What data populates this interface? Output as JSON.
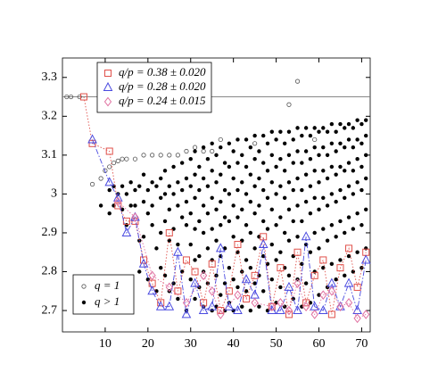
{
  "chart_data": {
    "type": "scatter",
    "xlim": [
      0,
      72
    ],
    "ylim": [
      2.645,
      3.35
    ],
    "xticks": [
      10,
      20,
      30,
      40,
      50,
      60,
      70
    ],
    "yticks": [
      2.7,
      2.8,
      2.9,
      3.0,
      3.1,
      3.2,
      3.3
    ],
    "hline": 3.25,
    "series": [
      {
        "name": "q/p = 0.38 ± 0.020",
        "color": "#e0504a",
        "marker": "square",
        "linestyle": "dotted",
        "x": [
          5,
          7,
          11,
          13,
          15,
          17,
          19,
          21,
          23,
          25,
          27,
          29,
          31,
          33,
          35,
          37,
          39,
          41,
          43,
          45,
          47,
          49,
          51,
          53,
          55,
          57,
          59,
          61,
          63,
          65,
          67,
          69,
          71
        ],
        "values": [
          3.25,
          3.13,
          3.11,
          2.97,
          2.93,
          2.93,
          2.83,
          2.77,
          2.72,
          2.9,
          2.75,
          2.83,
          2.8,
          2.72,
          2.82,
          2.7,
          2.75,
          2.87,
          2.73,
          2.79,
          2.89,
          2.71,
          2.81,
          2.69,
          2.85,
          2.72,
          2.79,
          2.83,
          2.69,
          2.81,
          2.86,
          2.76,
          2.85
        ]
      },
      {
        "name": "q/p = 0.28 ± 0.020",
        "color": "#4a4ae0",
        "marker": "triangle",
        "linestyle": "dashdot",
        "x": [
          7,
          11,
          13,
          15,
          17,
          19,
          21,
          23,
          25,
          27,
          29,
          31,
          33,
          35,
          37,
          39,
          41,
          43,
          45,
          47,
          49,
          51,
          53,
          55,
          57,
          59,
          61,
          63,
          65,
          67,
          69,
          71
        ],
        "values": [
          3.14,
          3.03,
          2.99,
          2.9,
          2.94,
          2.82,
          2.75,
          2.71,
          2.71,
          2.85,
          2.69,
          2.77,
          2.7,
          2.71,
          2.86,
          2.71,
          2.7,
          2.78,
          2.74,
          2.87,
          2.7,
          2.7,
          2.76,
          2.7,
          2.89,
          2.71,
          2.7,
          2.77,
          2.71,
          2.77,
          2.7,
          2.83
        ]
      },
      {
        "name": "q/p = 0.24 ± 0.015",
        "color": "#e070a0",
        "marker": "diamond",
        "linestyle": "dotted",
        "x": [
          13,
          17,
          21,
          25,
          29,
          33,
          35,
          37,
          41,
          45,
          49,
          51,
          53,
          55,
          57,
          59,
          61,
          63,
          65,
          67,
          69,
          71
        ],
        "values": [
          2.98,
          2.94,
          2.79,
          2.76,
          2.72,
          2.79,
          2.75,
          2.69,
          2.74,
          2.72,
          2.71,
          2.72,
          2.7,
          2.77,
          2.71,
          2.69,
          2.74,
          2.75,
          2.71,
          2.72,
          2.68,
          2.69
        ]
      },
      {
        "name": "q = 1",
        "color": "#555555",
        "marker": "open-circle",
        "x": [
          1,
          2,
          4,
          7,
          9,
          10,
          11,
          12,
          13,
          14,
          15,
          17,
          19,
          21,
          23,
          25,
          27,
          29,
          31,
          33,
          35,
          37,
          45,
          53,
          55,
          59
        ],
        "values": [
          3.25,
          3.25,
          3.25,
          3.025,
          3.04,
          3.06,
          3.07,
          3.08,
          3.085,
          3.09,
          3.09,
          3.09,
          3.1,
          3.1,
          3.1,
          3.1,
          3.1,
          3.11,
          3.12,
          3.11,
          3.11,
          3.14,
          3.13,
          3.23,
          3.29,
          3.14
        ]
      },
      {
        "name": "q > 1",
        "color": "#000000",
        "marker": "dot",
        "x": [
          9,
          11,
          11,
          12,
          12,
          13,
          14,
          14,
          15,
          15,
          16,
          16,
          17,
          17,
          18,
          18,
          18,
          19,
          19,
          19,
          20,
          20,
          20,
          21,
          21,
          21,
          22,
          22,
          22,
          23,
          23,
          23,
          23,
          24,
          24,
          24,
          24,
          25,
          25,
          25,
          25,
          26,
          26,
          26,
          26,
          27,
          27,
          27,
          27,
          28,
          28,
          28,
          28,
          29,
          29,
          29,
          29,
          30,
          30,
          30,
          30,
          30,
          31,
          31,
          31,
          31,
          31,
          31,
          32,
          32,
          32,
          32,
          32,
          33,
          33,
          33,
          33,
          33,
          33,
          34,
          34,
          34,
          34,
          34,
          35,
          35,
          35,
          35,
          35,
          35,
          36,
          36,
          36,
          36,
          36,
          36,
          37,
          37,
          37,
          37,
          37,
          37,
          38,
          38,
          38,
          38,
          38,
          38,
          39,
          39,
          39,
          39,
          39,
          39,
          40,
          40,
          40,
          40,
          40,
          40,
          41,
          41,
          41,
          41,
          41,
          41,
          42,
          42,
          42,
          42,
          42,
          42,
          43,
          43,
          43,
          43,
          43,
          43,
          44,
          44,
          44,
          44,
          44,
          44,
          45,
          45,
          45,
          45,
          45,
          45,
          46,
          46,
          46,
          46,
          46,
          46,
          47,
          47,
          47,
          47,
          47,
          47,
          48,
          48,
          48,
          48,
          48,
          48,
          49,
          49,
          49,
          49,
          49,
          49,
          50,
          50,
          50,
          50,
          50,
          50,
          51,
          51,
          51,
          51,
          51,
          51,
          52,
          52,
          52,
          52,
          52,
          52,
          53,
          53,
          53,
          53,
          53,
          53,
          54,
          54,
          54,
          54,
          54,
          54,
          55,
          55,
          55,
          55,
          55,
          55,
          56,
          56,
          56,
          56,
          56,
          56,
          57,
          57,
          57,
          57,
          57,
          57,
          58,
          58,
          58,
          58,
          58,
          58,
          59,
          59,
          59,
          59,
          59,
          59,
          60,
          60,
          60,
          60,
          60,
          60,
          61,
          61,
          61,
          61,
          61,
          61,
          62,
          62,
          62,
          62,
          62,
          62,
          63,
          63,
          63,
          63,
          63,
          63,
          64,
          64,
          64,
          64,
          64,
          64,
          65,
          65,
          65,
          65,
          65,
          65,
          66,
          66,
          66,
          66,
          66,
          66,
          67,
          67,
          67,
          67,
          67,
          67,
          68,
          68,
          68,
          68,
          68,
          68,
          69,
          69,
          69,
          69,
          69,
          69,
          70,
          70,
          70,
          70,
          70,
          70,
          71,
          71,
          71,
          71,
          71,
          71
        ],
        "values": [
          2.97,
          3.01,
          2.95,
          3.02,
          2.97,
          3.0,
          3.02,
          2.96,
          3.0,
          2.92,
          3.03,
          2.97,
          3.01,
          2.97,
          3.02,
          2.88,
          2.8,
          3.05,
          2.98,
          2.89,
          3.01,
          2.95,
          2.78,
          3.03,
          2.97,
          2.92,
          3.02,
          2.86,
          2.75,
          3.04,
          2.99,
          2.9,
          2.81,
          3.06,
          3.0,
          2.93,
          2.79,
          3.02,
          2.96,
          2.88,
          2.75,
          3.07,
          3.0,
          2.91,
          2.77,
          3.03,
          2.97,
          2.87,
          2.73,
          3.08,
          3.01,
          2.94,
          2.8,
          3.04,
          2.98,
          2.92,
          2.7,
          3.09,
          3.02,
          2.95,
          2.87,
          2.78,
          3.11,
          3.05,
          2.99,
          2.91,
          2.83,
          2.73,
          3.07,
          3.01,
          2.93,
          2.84,
          2.76,
          3.12,
          3.04,
          2.97,
          2.9,
          2.8,
          2.71,
          3.09,
          3.02,
          2.95,
          2.86,
          2.77,
          3.13,
          3.06,
          2.99,
          2.91,
          2.83,
          2.7,
          3.1,
          3.03,
          2.96,
          2.88,
          2.79,
          2.71,
          3.12,
          3.05,
          2.98,
          2.92,
          2.84,
          2.74,
          3.08,
          3.01,
          2.94,
          2.86,
          2.77,
          2.7,
          3.13,
          3.07,
          3.0,
          2.93,
          2.81,
          2.72,
          3.11,
          3.04,
          2.97,
          2.89,
          2.78,
          2.7,
          3.14,
          3.08,
          3.01,
          2.94,
          2.85,
          2.76,
          3.1,
          3.03,
          2.96,
          2.88,
          2.8,
          2.71,
          3.14,
          3.07,
          3.0,
          2.92,
          2.83,
          2.75,
          3.12,
          3.05,
          2.98,
          2.9,
          2.81,
          2.7,
          3.15,
          3.09,
          3.02,
          2.95,
          2.86,
          2.77,
          3.11,
          3.04,
          2.97,
          2.89,
          2.79,
          2.71,
          3.15,
          3.08,
          3.01,
          2.93,
          2.84,
          2.75,
          3.13,
          3.06,
          2.99,
          2.91,
          2.82,
          2.7,
          3.16,
          3.1,
          3.03,
          2.96,
          2.87,
          2.78,
          3.14,
          3.07,
          3.0,
          2.92,
          2.83,
          2.72,
          3.16,
          3.09,
          3.02,
          2.94,
          2.85,
          2.76,
          3.13,
          3.06,
          2.99,
          2.9,
          2.81,
          2.71,
          3.16,
          3.1,
          3.03,
          2.96,
          2.88,
          2.79,
          3.14,
          3.08,
          3.01,
          2.93,
          2.84,
          2.73,
          3.17,
          3.11,
          3.04,
          2.97,
          2.89,
          2.78,
          3.15,
          3.08,
          3.01,
          2.93,
          2.82,
          2.71,
          3.17,
          3.11,
          3.05,
          2.98,
          2.87,
          2.77,
          3.15,
          3.09,
          3.02,
          2.95,
          2.85,
          2.72,
          3.17,
          3.12,
          3.06,
          2.99,
          2.9,
          2.8,
          3.16,
          3.1,
          3.03,
          2.96,
          2.86,
          2.74,
          3.17,
          3.12,
          3.06,
          2.99,
          2.91,
          2.81,
          3.16,
          3.1,
          3.04,
          2.97,
          2.88,
          2.76,
          3.18,
          3.13,
          3.07,
          3.0,
          2.92,
          2.82,
          3.16,
          3.11,
          3.05,
          2.98,
          2.89,
          2.78,
          3.18,
          3.13,
          3.07,
          3.01,
          2.93,
          2.83,
          3.17,
          3.12,
          3.06,
          2.99,
          2.9,
          2.79,
          3.18,
          3.14,
          3.08,
          3.02,
          2.94,
          2.84,
          3.17,
          3.12,
          3.06,
          3.0,
          2.91,
          2.8,
          3.19,
          3.14,
          3.09,
          3.03,
          2.95,
          2.85,
          3.18,
          3.13,
          3.07,
          3.01,
          2.92,
          2.81,
          3.19,
          3.15,
          3.1,
          3.04,
          2.96,
          2.86
        ]
      }
    ]
  }
}
